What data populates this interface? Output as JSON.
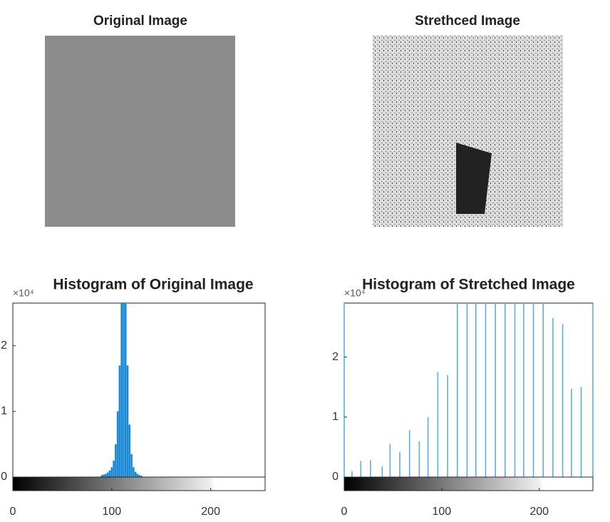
{
  "images": [
    {
      "title": "Original Image"
    },
    {
      "title": "Strethced Image"
    }
  ],
  "chart_data": [
    {
      "type": "stem",
      "title": "Histogram of Original Image",
      "y_exponent": "×10⁴",
      "color": "#1a8ad4",
      "x": [
        90,
        92,
        94,
        96,
        98,
        100,
        102,
        104,
        106,
        108,
        110,
        112,
        114,
        116,
        118,
        120,
        122,
        124,
        126,
        128,
        130
      ],
      "values": [
        0.03,
        0.04,
        0.05,
        0.07,
        0.1,
        0.15,
        0.25,
        0.5,
        1.0,
        1.7,
        2.65,
        2.65,
        2.65,
        1.7,
        0.8,
        0.35,
        0.15,
        0.08,
        0.05,
        0.03,
        0.02
      ],
      "xlim": [
        0,
        255
      ],
      "xticks": [
        0,
        100,
        200
      ],
      "ylim": [
        0,
        2.65
      ],
      "yticks": [
        0,
        1,
        2
      ]
    },
    {
      "type": "stem",
      "title": "Histogram of Stretched Image",
      "y_exponent": "×10⁴",
      "color": "#5aaee8",
      "x": [
        0,
        8,
        17,
        27,
        39,
        47,
        57,
        67,
        77,
        86,
        96,
        106,
        116,
        126,
        135,
        145,
        155,
        165,
        175,
        184,
        194,
        204,
        214,
        224,
        233,
        243,
        255
      ],
      "values": [
        2.9,
        0.1,
        0.27,
        0.28,
        0.18,
        0.55,
        0.42,
        0.78,
        0.6,
        1.0,
        1.75,
        1.7,
        2.9,
        2.9,
        2.9,
        2.9,
        2.9,
        2.9,
        2.9,
        2.9,
        2.9,
        2.9,
        2.65,
        2.55,
        1.47,
        1.5,
        2.9
      ],
      "xlim": [
        0,
        255
      ],
      "xticks": [
        0,
        100,
        200
      ],
      "ylim": [
        0,
        2.9
      ],
      "yticks": [
        0,
        1,
        2
      ]
    }
  ]
}
